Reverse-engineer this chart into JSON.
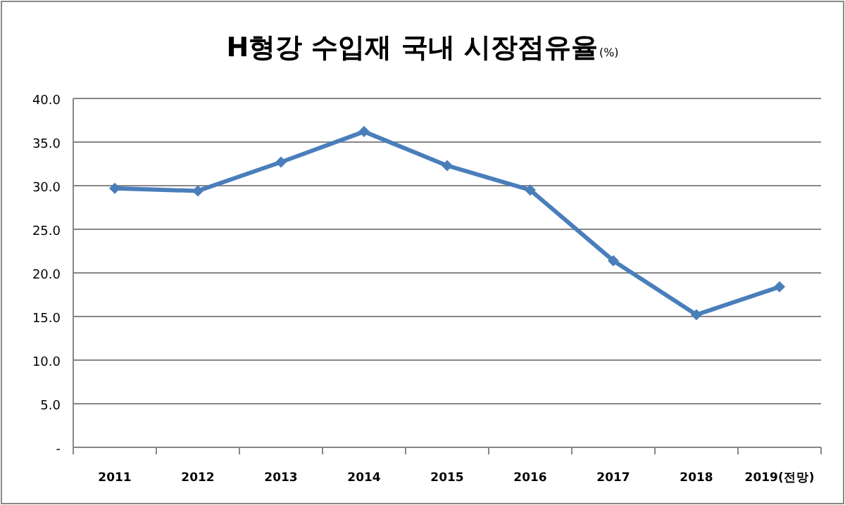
{
  "chart_data": {
    "type": "line",
    "title": "H형강 수입재 국내 시장점유율",
    "ylabel": "(%)",
    "categories": [
      "2011",
      "2012",
      "2013",
      "2014",
      "2015",
      "2016",
      "2017",
      "2018",
      "2019(전망)"
    ],
    "series": [
      {
        "color": "#4a7ebb",
        "values": [
          29.7,
          29.4,
          32.7,
          36.2,
          32.3,
          29.5,
          21.4,
          15.2,
          18.4
        ]
      }
    ],
    "ylim": [
      0,
      40
    ],
    "yticks": [
      {
        "value": 0,
        "label": "-"
      },
      {
        "value": 5,
        "label": "5.0"
      },
      {
        "value": 10,
        "label": "10.0"
      },
      {
        "value": 15,
        "label": "15.0"
      },
      {
        "value": 20,
        "label": "20.0"
      },
      {
        "value": 25,
        "label": "25.0"
      },
      {
        "value": 30,
        "label": "30.0"
      },
      {
        "value": 35,
        "label": "35.0"
      },
      {
        "value": 40,
        "label": "40.0"
      }
    ],
    "grid": "y",
    "marker": "diamond",
    "line_style": "solid"
  }
}
